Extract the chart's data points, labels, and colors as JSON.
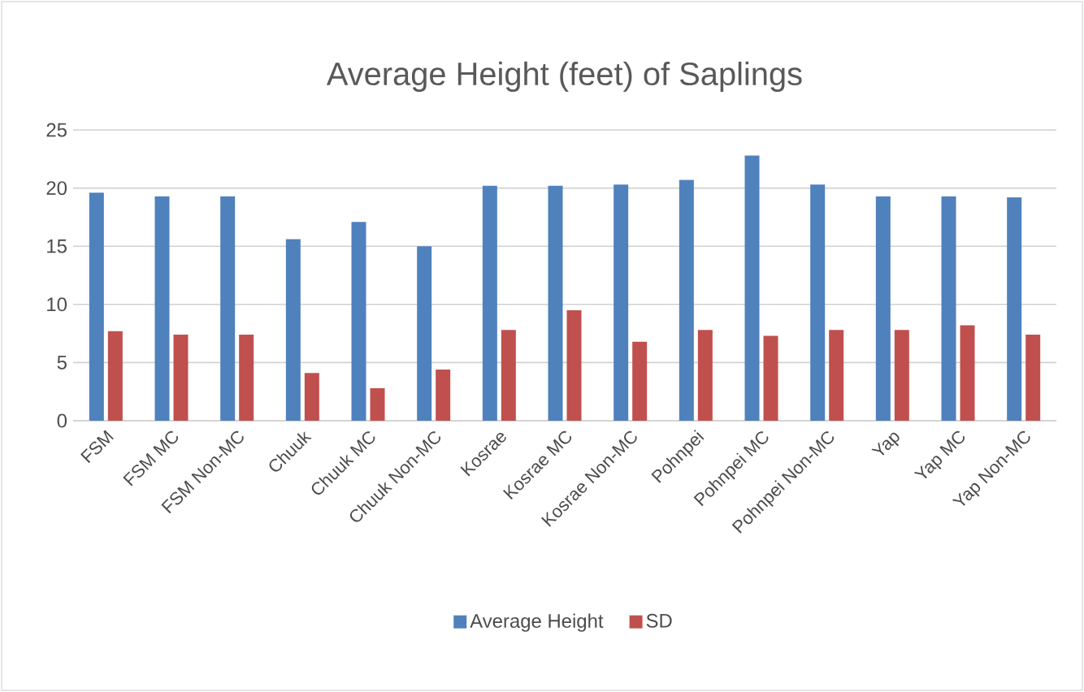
{
  "chart_data": {
    "type": "bar",
    "title": "Average Height (feet) of Saplings",
    "categories": [
      "FSM",
      "FSM MC",
      "FSM Non-MC",
      "Chuuk",
      "Chuuk MC",
      "Chuuk Non-MC",
      "Kosrae",
      "Kosrae MC",
      "Kosrae Non-MC",
      "Pohnpei",
      "Pohnpei MC",
      "Pohnpei Non-MC",
      "Yap",
      "Yap MC",
      "Yap Non-MC"
    ],
    "series": [
      {
        "name": "Average Height",
        "color": "#4f81bd",
        "values": [
          19.6,
          19.3,
          19.3,
          15.6,
          17.1,
          15.0,
          20.2,
          20.2,
          20.3,
          20.7,
          22.8,
          20.3,
          19.3,
          19.3,
          19.2
        ]
      },
      {
        "name": "SD",
        "color": "#c0504d",
        "values": [
          7.7,
          7.4,
          7.4,
          4.1,
          2.8,
          4.4,
          7.8,
          9.5,
          6.8,
          7.8,
          7.3,
          7.8,
          7.8,
          8.2,
          7.4
        ]
      }
    ],
    "ylim": [
      0,
      25
    ],
    "yticks": [
      0,
      5,
      10,
      15,
      20,
      25
    ],
    "grid": "y",
    "legend": "bottom"
  }
}
